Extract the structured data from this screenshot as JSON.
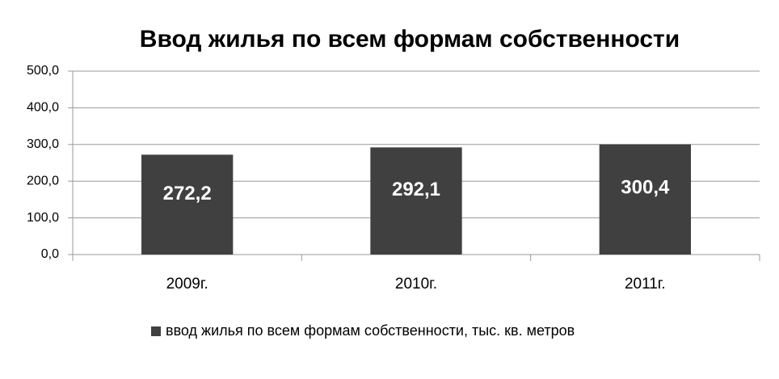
{
  "chart_data": {
    "type": "bar",
    "title": "Ввод жилья по всем формам собственности",
    "categories": [
      "2009г.",
      "2010г.",
      "2011г."
    ],
    "series": [
      {
        "name": "ввод жилья по всем формам собственности, тыс. кв. метров",
        "color": "#404040",
        "values": [
          272.2,
          292.1,
          300.4
        ],
        "value_labels": [
          "272,2",
          "292,1",
          "300,4"
        ]
      }
    ],
    "ylim": [
      0,
      500
    ],
    "yticks": [
      {
        "value": 0,
        "label": "0,0"
      },
      {
        "value": 100,
        "label": "100,0"
      },
      {
        "value": 200,
        "label": "200,0"
      },
      {
        "value": 300,
        "label": "300,0"
      },
      {
        "value": 400,
        "label": "400,0"
      },
      {
        "value": 500,
        "label": "500,0"
      }
    ],
    "grid": true,
    "legend": "bottom"
  }
}
